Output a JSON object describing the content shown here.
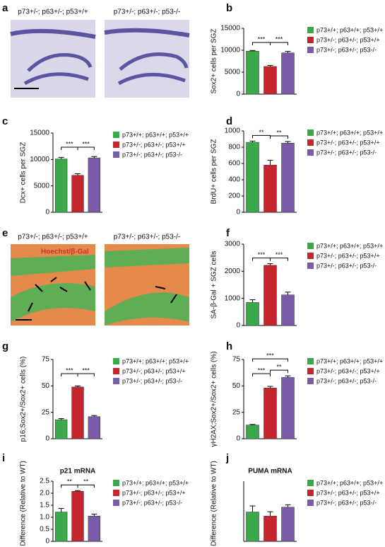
{
  "images": [
    {
      "panel_label": "a",
      "captions": [
        "p73+/-; p63+/-; p53+/+",
        "p73+/-; p63+/-; p53-/-"
      ]
    },
    {
      "panel_label": "e",
      "captions": [
        "p73+/-; p63+/-; p53+/+",
        "p73+/-; p63+/-; p53-/-"
      ],
      "overlay": "Hoechst/β-Gal"
    }
  ],
  "chart_data": [
    {
      "type": "bar",
      "panel_label": "b",
      "ylabel": "Sox2+ cells per SGZ",
      "ylim": [
        0,
        15000
      ],
      "yticks": [
        0,
        5000,
        10000,
        15000
      ],
      "series": [
        {
          "name": "p73+/+; p63+/+; p53+/+",
          "color": "#3aa94a",
          "values": [
            9800
          ],
          "errors": [
            150
          ]
        },
        {
          "name": "p73+/-; p63+/-; p53+/+",
          "color": "#c5252d",
          "values": [
            6300
          ],
          "errors": [
            250
          ]
        },
        {
          "name": "p73+/-; p63+/-; p53-/-",
          "color": "#7a5ba7",
          "values": [
            9400
          ],
          "errors": [
            350
          ]
        }
      ],
      "significance": [
        {
          "between": [
            0,
            1
          ],
          "label": "***"
        },
        {
          "between": [
            1,
            2
          ],
          "label": "***"
        }
      ]
    },
    {
      "type": "bar",
      "panel_label": "c",
      "ylabel": "Dcx+ cells per SGZ",
      "ylim": [
        0,
        15000
      ],
      "yticks": [
        0,
        5000,
        10000,
        15000
      ],
      "series": [
        {
          "name": "p73+/+; p63+/+; p53+/+",
          "color": "#3aa94a",
          "values": [
            10100
          ],
          "errors": [
            300
          ]
        },
        {
          "name": "p73+/-; p63+/-; p53+/+",
          "color": "#c5252d",
          "values": [
            7000
          ],
          "errors": [
            300
          ]
        },
        {
          "name": "p73+/-; p63+/-; p53-/-",
          "color": "#7a5ba7",
          "values": [
            10300
          ],
          "errors": [
            250
          ]
        }
      ],
      "significance": [
        {
          "between": [
            0,
            1
          ],
          "label": "***"
        },
        {
          "between": [
            1,
            2
          ],
          "label": "***"
        }
      ]
    },
    {
      "type": "bar",
      "panel_label": "d",
      "ylabel": "BrdU+ cells per SGZ",
      "ylim": [
        0,
        1000
      ],
      "yticks": [
        0,
        200,
        400,
        600,
        800,
        1000
      ],
      "series": [
        {
          "name": "p73+/+; p63+/+; p53+/+",
          "color": "#3aa94a",
          "values": [
            860
          ],
          "errors": [
            15
          ]
        },
        {
          "name": "p73+/-; p63+/-; p53+/+",
          "color": "#c5252d",
          "values": [
            580
          ],
          "errors": [
            60
          ]
        },
        {
          "name": "p73+/-; p63+/-; p53-/-",
          "color": "#7a5ba7",
          "values": [
            850
          ],
          "errors": [
            20
          ]
        }
      ],
      "significance": [
        {
          "between": [
            0,
            1
          ],
          "label": "**"
        },
        {
          "between": [
            1,
            2
          ],
          "label": "**"
        }
      ]
    },
    {
      "type": "bar",
      "panel_label": "f",
      "ylabel": "SA-β-Gal + SGZ cells",
      "ylim": [
        0,
        3000
      ],
      "yticks": [
        0,
        1000,
        2000,
        3000
      ],
      "series": [
        {
          "name": "p73+/+; p63+/+; p53+/+",
          "color": "#3aa94a",
          "values": [
            850
          ],
          "errors": [
            100
          ]
        },
        {
          "name": "p73+/-; p63+/-; p53+/+",
          "color": "#c5252d",
          "values": [
            2220
          ],
          "errors": [
            60
          ]
        },
        {
          "name": "p73+/-; p63+/-; p53-/-",
          "color": "#7a5ba7",
          "values": [
            1130
          ],
          "errors": [
            100
          ]
        }
      ],
      "significance": [
        {
          "between": [
            0,
            1
          ],
          "label": "***"
        },
        {
          "between": [
            1,
            2
          ],
          "label": "***"
        }
      ]
    },
    {
      "type": "bar",
      "panel_label": "g",
      "ylabel": "p16;Sox2+/Sox2+ cells (%)",
      "ylim": [
        0,
        75
      ],
      "yticks": [
        0,
        25,
        50,
        75
      ],
      "series": [
        {
          "name": "p73+/+; p63+/+; p53+/+",
          "color": "#3aa94a",
          "values": [
            18
          ],
          "errors": [
            1
          ]
        },
        {
          "name": "p73+/-; p63+/-; p53+/+",
          "color": "#c5252d",
          "values": [
            49
          ],
          "errors": [
            1
          ]
        },
        {
          "name": "p73+/-; p63+/-; p53-/-",
          "color": "#7a5ba7",
          "values": [
            21
          ],
          "errors": [
            1
          ]
        }
      ],
      "significance": [
        {
          "between": [
            0,
            1
          ],
          "label": "***"
        },
        {
          "between": [
            1,
            2
          ],
          "label": "***"
        }
      ]
    },
    {
      "type": "bar",
      "panel_label": "h",
      "ylabel": "γH2AX;Sox2+/Sox2+ cells (%)",
      "ylim": [
        0,
        75
      ],
      "yticks": [
        0,
        25,
        50,
        75
      ],
      "series": [
        {
          "name": "p73+/+; p63+/+; p53+/+",
          "color": "#3aa94a",
          "values": [
            13
          ],
          "errors": [
            0.5
          ]
        },
        {
          "name": "p73+/-; p63+/-; p53+/+",
          "color": "#c5252d",
          "values": [
            48
          ],
          "errors": [
            1.5
          ]
        },
        {
          "name": "p73+/-; p63+/-; p53-/-",
          "color": "#7a5ba7",
          "values": [
            58
          ],
          "errors": [
            1.5
          ]
        }
      ],
      "significance": [
        {
          "between": [
            0,
            1
          ],
          "label": "***"
        },
        {
          "between": [
            1,
            2
          ],
          "label": "**"
        },
        {
          "between": [
            0,
            2
          ],
          "label": "***"
        }
      ]
    },
    {
      "type": "bar",
      "panel_label": "i",
      "title": "p21 mRNA",
      "ylabel": "Fold Difference (Relative to WT)",
      "ylim": [
        0,
        2.5
      ],
      "yticks": [
        0,
        0.5,
        {
          "value": 1,
          "label": "1.0"
        },
        1.5,
        {
          "value": 2,
          "label": "2.0"
        },
        2.5
      ],
      "series": [
        {
          "name": "p73+/+; p63+/+; p53+/+",
          "color": "#3aa94a",
          "values": [
            1.22
          ],
          "errors": [
            0.15
          ]
        },
        {
          "name": "p73+/-; p63+/-; p53+/+",
          "color": "#c5252d",
          "values": [
            2.08
          ],
          "errors": [
            0.03
          ]
        },
        {
          "name": "p73+/-; p63+/-; p53-/-",
          "color": "#7a5ba7",
          "values": [
            1.05
          ],
          "errors": [
            0.08
          ]
        }
      ],
      "significance": [
        {
          "between": [
            0,
            1
          ],
          "label": "**"
        },
        {
          "between": [
            1,
            2
          ],
          "label": "**"
        }
      ]
    },
    {
      "type": "bar",
      "panel_label": "j",
      "title": "PUMA mRNA",
      "ylabel": "Fold Difference (Relative to WT)",
      "ylim": [
        0,
        2.5
      ],
      "series": [
        {
          "name": "p73+/+; p63+/+; p53+/+",
          "color": "#3aa94a",
          "values": [
            1.22
          ],
          "errors": [
            0.25
          ]
        },
        {
          "name": "p73+/-; p63+/-; p53+/+",
          "color": "#c5252d",
          "values": [
            1.05
          ],
          "errors": [
            0.18
          ]
        },
        {
          "name": "p73+/-; p63+/-; p53-/-",
          "color": "#7a5ba7",
          "values": [
            1.42
          ],
          "errors": [
            0.1
          ]
        }
      ]
    }
  ]
}
